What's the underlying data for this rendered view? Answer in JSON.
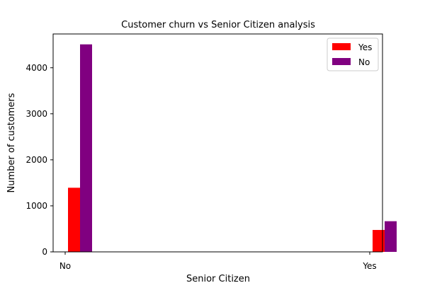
{
  "chart_data": {
    "type": "bar",
    "title": "Customer churn vs Senior Citizen analysis",
    "xlabel": "Senior Citizen",
    "ylabel": "Number of customers",
    "categories": [
      "No",
      "Yes"
    ],
    "series": [
      {
        "name": "Yes",
        "values": [
          1393,
          476
        ],
        "color": "#ff0000"
      },
      {
        "name": "No",
        "values": [
          4508,
          666
        ],
        "color": "#800080"
      }
    ],
    "ylim": [
      0,
      4734
    ],
    "yticks": [
      0,
      1000,
      2000,
      3000,
      4000
    ],
    "grid": false,
    "legend_position": "top-right"
  }
}
